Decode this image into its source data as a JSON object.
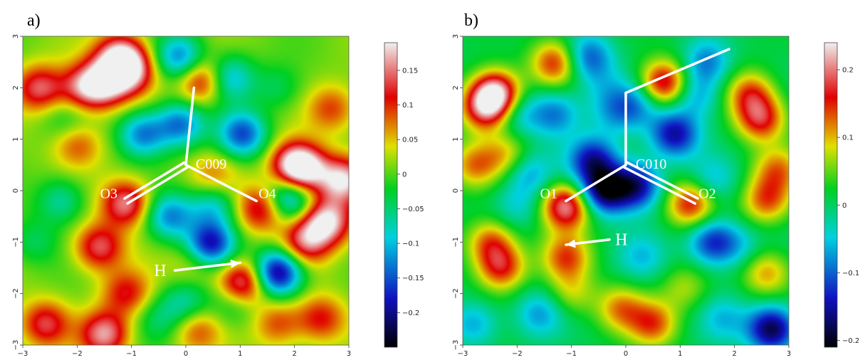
{
  "chart_data": [
    {
      "type": "heatmap",
      "panel_label": "a)",
      "title": "",
      "xlabel": "",
      "ylabel": "",
      "xlim": [
        -3,
        3
      ],
      "ylim": [
        -3,
        3
      ],
      "x_ticks": [
        -3,
        -2,
        -1,
        0,
        1,
        2,
        3
      ],
      "y_ticks": [
        -3,
        -2,
        -1,
        0,
        1,
        2,
        3
      ],
      "colorbar": {
        "range": [
          -0.25,
          0.19
        ],
        "ticks": [
          0.15,
          0.1,
          0.05,
          0,
          -0.05,
          -0.1,
          -0.15,
          -0.2
        ],
        "tick_labels": [
          "0.15",
          "0.1",
          "0.05",
          "0",
          "−0.05",
          "−0.1",
          "−0.15",
          "−0.2"
        ]
      },
      "colormap": [
        "#000000",
        "#1010c0",
        "#00d0e0",
        "#00d020",
        "#e0e000",
        "#e00000",
        "#f0f0f0"
      ],
      "molecule": {
        "atoms": [
          {
            "label": "C009",
            "x": 0.0,
            "y": 0.5
          },
          {
            "label": "O3",
            "x": -1.1,
            "y": -0.2
          },
          {
            "label": "O4",
            "x": 1.3,
            "y": -0.2
          },
          {
            "label": "",
            "x": 0.15,
            "y": 2.0
          }
        ],
        "double_bond_to": "O3",
        "h_label": "H",
        "h_arrow": {
          "from": [
            -0.2,
            -1.55
          ],
          "to": [
            1.0,
            -1.4
          ]
        }
      },
      "features": [
        {
          "x": -1.2,
          "y": 2.6,
          "v": 0.18
        },
        {
          "x": -1.5,
          "y": 2.1,
          "v": 0.16
        },
        {
          "x": -1.0,
          "y": 2.3,
          "v": 0.12
        },
        {
          "x": 0.3,
          "y": 2.15,
          "v": 0.13
        },
        {
          "x": -1.9,
          "y": 2.0,
          "v": 0.12
        },
        {
          "x": -2.7,
          "y": 2.0,
          "v": 0.13
        },
        {
          "x": -0.1,
          "y": 2.6,
          "v": -0.14
        },
        {
          "x": 0.8,
          "y": 2.2,
          "v": -0.12
        },
        {
          "x": -0.1,
          "y": 1.3,
          "v": -0.14
        },
        {
          "x": -0.8,
          "y": 1.1,
          "v": -0.14
        },
        {
          "x": 1.05,
          "y": 1.1,
          "v": -0.16
        },
        {
          "x": 1.7,
          "y": 2.0,
          "v": -0.05
        },
        {
          "x": -2.0,
          "y": 0.9,
          "v": 0.08
        },
        {
          "x": 0.5,
          "y": 0.3,
          "v": 0.06
        },
        {
          "x": -1.1,
          "y": -0.25,
          "v": 0.15
        },
        {
          "x": 1.4,
          "y": -0.35,
          "v": 0.13
        },
        {
          "x": 2.0,
          "y": 0.5,
          "v": 0.15
        },
        {
          "x": 2.2,
          "y": 0.4,
          "v": 0.14
        },
        {
          "x": 2.9,
          "y": 0.2,
          "v": 0.17
        },
        {
          "x": 2.6,
          "y": -0.6,
          "v": 0.18
        },
        {
          "x": 2.2,
          "y": -1.0,
          "v": 0.13
        },
        {
          "x": 1.9,
          "y": -0.15,
          "v": -0.14
        },
        {
          "x": -0.3,
          "y": -0.5,
          "v": -0.13
        },
        {
          "x": 0.5,
          "y": -0.3,
          "v": -0.1
        },
        {
          "x": 0.45,
          "y": -1.05,
          "v": -0.2
        },
        {
          "x": 1.7,
          "y": -1.6,
          "v": -0.23
        },
        {
          "x": 1.05,
          "y": -1.8,
          "v": 0.17
        },
        {
          "x": 0.2,
          "y": -1.4,
          "v": 0.05
        },
        {
          "x": -1.6,
          "y": -1.1,
          "v": 0.13
        },
        {
          "x": -1.1,
          "y": -2.0,
          "v": 0.1
        },
        {
          "x": -2.6,
          "y": -2.6,
          "v": 0.12
        },
        {
          "x": -1.5,
          "y": -2.8,
          "v": 0.15
        },
        {
          "x": 0.0,
          "y": -2.2,
          "v": -0.08
        },
        {
          "x": 0.2,
          "y": -2.7,
          "v": 0.08
        },
        {
          "x": 1.7,
          "y": -2.6,
          "v": 0.08
        },
        {
          "x": 2.5,
          "y": -2.5,
          "v": 0.1
        },
        {
          "x": -2.3,
          "y": -0.2,
          "v": -0.08
        },
        {
          "x": -2.8,
          "y": -1.0,
          "v": -0.05
        },
        {
          "x": -0.5,
          "y": -2.5,
          "v": -0.05
        },
        {
          "x": 2.7,
          "y": 1.6,
          "v": 0.08
        },
        {
          "x": 0.9,
          "y": -2.2,
          "v": -0.06
        },
        {
          "x": -2.2,
          "y": 1.4,
          "v": -0.04
        }
      ]
    },
    {
      "type": "heatmap",
      "panel_label": "b)",
      "title": "",
      "xlabel": "",
      "ylabel": "",
      "xlim": [
        -3,
        3
      ],
      "ylim": [
        -3,
        3
      ],
      "x_ticks": [
        -3,
        -2,
        -1,
        0,
        1,
        2,
        3
      ],
      "y_ticks": [
        -3,
        -2,
        -1,
        0,
        1,
        2,
        3
      ],
      "colorbar": {
        "range": [
          -0.21,
          0.24
        ],
        "ticks": [
          0.2,
          0.1,
          0,
          -0.1,
          -0.2
        ],
        "tick_labels": [
          "0.2",
          "0.1",
          "0",
          "−0.1",
          "−0.2"
        ]
      },
      "colormap": [
        "#000000",
        "#1010c0",
        "#00d0e0",
        "#00d020",
        "#e0e000",
        "#e00000",
        "#f0f0f0"
      ],
      "molecule": {
        "atoms": [
          {
            "label": "C010",
            "x": 0.0,
            "y": 0.5
          },
          {
            "label": "O1",
            "x": -1.1,
            "y": -0.2
          },
          {
            "label": "O2",
            "x": 1.3,
            "y": -0.2
          },
          {
            "label": "",
            "x": 0.0,
            "y": 1.9
          },
          {
            "label": "",
            "x": 1.9,
            "y": 2.75
          }
        ],
        "double_bond_to": "O2",
        "h_label": "H",
        "h_arrow": {
          "from": [
            -0.3,
            -0.95
          ],
          "to": [
            -1.1,
            -1.05
          ]
        }
      },
      "features": [
        {
          "x": -2.4,
          "y": 1.9,
          "v": 0.22
        },
        {
          "x": -2.6,
          "y": 1.6,
          "v": 0.16
        },
        {
          "x": 0.7,
          "y": 2.1,
          "v": 0.18
        },
        {
          "x": -1.3,
          "y": 2.5,
          "v": 0.14
        },
        {
          "x": -0.7,
          "y": 2.6,
          "v": -0.12
        },
        {
          "x": -1.3,
          "y": 1.5,
          "v": -0.1
        },
        {
          "x": -2.0,
          "y": 1.5,
          "v": -0.07
        },
        {
          "x": -0.2,
          "y": 1.5,
          "v": -0.06
        },
        {
          "x": 0.2,
          "y": 1.7,
          "v": -0.08
        },
        {
          "x": 1.3,
          "y": 1.85,
          "v": -0.08
        },
        {
          "x": 1.5,
          "y": 2.5,
          "v": -0.1
        },
        {
          "x": 2.3,
          "y": 1.9,
          "v": 0.12
        },
        {
          "x": 2.5,
          "y": 1.4,
          "v": 0.15
        },
        {
          "x": 0.9,
          "y": 1.1,
          "v": -0.16
        },
        {
          "x": -0.6,
          "y": 0.6,
          "v": -0.15
        },
        {
          "x": -0.4,
          "y": 0.0,
          "v": -0.2
        },
        {
          "x": 0.2,
          "y": 0.1,
          "v": -0.17
        },
        {
          "x": -1.1,
          "y": -0.3,
          "v": 0.2
        },
        {
          "x": 1.2,
          "y": -0.25,
          "v": 0.15
        },
        {
          "x": -1.8,
          "y": 0.35,
          "v": -0.08
        },
        {
          "x": 1.6,
          "y": 0.2,
          "v": -0.06
        },
        {
          "x": 2.6,
          "y": -0.2,
          "v": 0.12
        },
        {
          "x": 2.8,
          "y": 0.4,
          "v": 0.1
        },
        {
          "x": -2.2,
          "y": 0.7,
          "v": 0.08
        },
        {
          "x": -2.8,
          "y": 0.5,
          "v": 0.1
        },
        {
          "x": 1.6,
          "y": -1.0,
          "v": -0.14
        },
        {
          "x": 2.6,
          "y": -1.6,
          "v": 0.1
        },
        {
          "x": 2.1,
          "y": -1.1,
          "v": -0.05
        },
        {
          "x": -2.3,
          "y": -1.5,
          "v": 0.14
        },
        {
          "x": -2.5,
          "y": -1.0,
          "v": 0.12
        },
        {
          "x": -1.1,
          "y": -1.3,
          "v": 0.12
        },
        {
          "x": -1.0,
          "y": -2.0,
          "v": 0.07
        },
        {
          "x": 0.3,
          "y": -1.3,
          "v": -0.06
        },
        {
          "x": -0.1,
          "y": -2.3,
          "v": 0.1
        },
        {
          "x": 0.5,
          "y": -2.6,
          "v": 0.12
        },
        {
          "x": -1.6,
          "y": -2.4,
          "v": -0.08
        },
        {
          "x": -2.8,
          "y": -2.6,
          "v": -0.08
        },
        {
          "x": 2.7,
          "y": -2.7,
          "v": -0.2
        },
        {
          "x": 1.8,
          "y": -2.5,
          "v": -0.06
        },
        {
          "x": -2.0,
          "y": -0.3,
          "v": -0.05
        },
        {
          "x": 1.1,
          "y": -1.9,
          "v": 0.06
        },
        {
          "x": -0.4,
          "y": 2.0,
          "v": -0.04
        }
      ]
    }
  ]
}
